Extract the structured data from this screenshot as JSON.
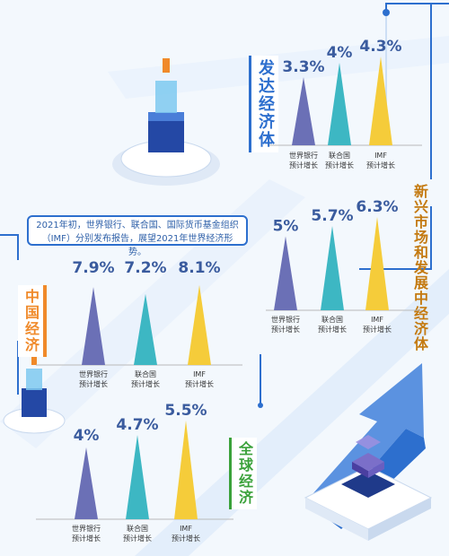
{
  "note": "2021年初，世界银行、联合国、国际货币基金组织（IMF）分别发布报告，展望2021年世界经济形势。",
  "colors": {
    "purple": "#6b70b6",
    "teal": "#3db7c3",
    "yellow": "#f5cc3a",
    "blue": "#2d6fce",
    "orange": "#f08a2a",
    "green": "#3aa13a"
  },
  "chart_data": [
    {
      "type": "bar",
      "title": "发达经济体",
      "categories": [
        "世界银行\n预计增长",
        "联合国\n预计增长",
        "IMF\n预计增长"
      ],
      "values": [
        3.3,
        4,
        4.3
      ],
      "value_labels": [
        "3.3%",
        "4%",
        "4.3%"
      ]
    },
    {
      "type": "bar",
      "title": "新兴市场和发展中经济体",
      "categories": [
        "世界银行\n预计增长",
        "联合国\n预计增长",
        "IMF\n预计增长"
      ],
      "values": [
        5,
        5.7,
        6.3
      ],
      "value_labels": [
        "5%",
        "5.7%",
        "6.3%"
      ]
    },
    {
      "type": "bar",
      "title": "中国经济",
      "categories": [
        "世界银行\n预计增长",
        "联合国\n预计增长",
        "IMF\n预计增长"
      ],
      "values": [
        7.9,
        7.2,
        8.1
      ],
      "value_labels": [
        "7.9%",
        "7.2%",
        "8.1%"
      ]
    },
    {
      "type": "bar",
      "title": "全球经济",
      "categories": [
        "世界银行\n预计增长",
        "联合国\n预计增长",
        "IMF\n预计增长"
      ],
      "values": [
        4,
        4.7,
        5.5
      ],
      "value_labels": [
        "4%",
        "4.7%",
        "5.5%"
      ]
    }
  ]
}
